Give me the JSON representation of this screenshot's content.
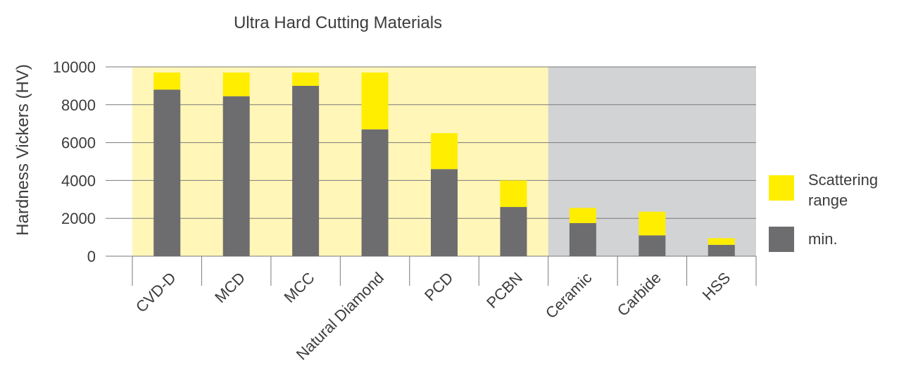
{
  "chart_data": {
    "type": "bar",
    "stacked": true,
    "title": "Ultra Hard Cutting Materials",
    "xlabel": "",
    "ylabel": "Hardness Vickers (HV)",
    "ylim": [
      0,
      10000
    ],
    "yticks": [
      0,
      2000,
      4000,
      6000,
      8000,
      10000
    ],
    "grid": true,
    "legend_position": "right",
    "categories": [
      "CVD-D",
      "MCD",
      "MCC",
      "Natural Diamond",
      "PCD",
      "PCBN",
      "Ceramic",
      "Carbide",
      "HSS"
    ],
    "series": [
      {
        "name": "min.",
        "color": "#6d6d70",
        "values": [
          8800,
          8450,
          9000,
          6700,
          4600,
          2600,
          1750,
          1100,
          600
        ]
      },
      {
        "name": "Scattering range",
        "color": "#ffee00",
        "values": [
          900,
          1250,
          700,
          3000,
          1900,
          1400,
          800,
          1250,
          350
        ]
      }
    ],
    "legend": [
      {
        "line1": "Scattering",
        "line2": "range",
        "color": "#ffee00"
      },
      {
        "line1": "min.",
        "line2": "",
        "color": "#6d6d70"
      }
    ],
    "regions": [
      {
        "from": 0,
        "to": 5,
        "color": "#fff6b8"
      },
      {
        "from": 6,
        "to": 8,
        "color": "#d2d3d5"
      }
    ]
  }
}
